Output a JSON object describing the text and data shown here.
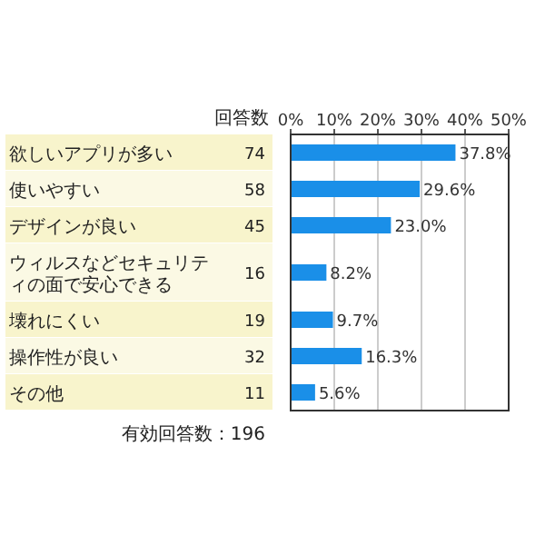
{
  "chart_data": {
    "type": "bar",
    "orientation": "horizontal",
    "categories": [
      "欲しいアプリが多い",
      "使いやすい",
      "デザインが良い",
      "ウィルスなどセキュリティの面で安心できる",
      "壊れにくい",
      "操作性が良い",
      "その他"
    ],
    "series": [
      {
        "color": "#1a8fe8",
        "values": [
          37.8,
          29.6,
          23.0,
          8.2,
          9.7,
          16.3,
          5.6
        ],
        "value_labels": [
          "37.8%",
          "29.6%",
          "23.0%",
          "8.2%",
          "9.7%",
          "16.3%",
          "5.6%"
        ]
      }
    ],
    "xlim": [
      0,
      50
    ],
    "xticks": [
      {
        "value": 0,
        "label": "0%"
      },
      {
        "value": 10,
        "label": "10%"
      },
      {
        "value": 20,
        "label": "20%"
      },
      {
        "value": 30,
        "label": "30%"
      },
      {
        "value": 40,
        "label": "40%"
      },
      {
        "value": 50,
        "label": "50%"
      }
    ],
    "grid": "x",
    "annotations": [
      "回答数",
      "74",
      "58",
      "45",
      "16",
      "19",
      "32",
      "11",
      "有効回答数：196"
    ]
  }
}
